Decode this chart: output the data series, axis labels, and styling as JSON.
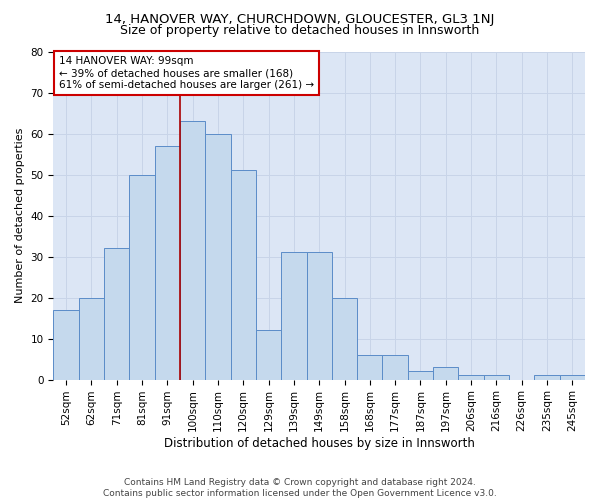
{
  "title1": "14, HANOVER WAY, CHURCHDOWN, GLOUCESTER, GL3 1NJ",
  "title2": "Size of property relative to detached houses in Innsworth",
  "xlabel": "Distribution of detached houses by size in Innsworth",
  "ylabel": "Number of detached properties",
  "categories": [
    "52sqm",
    "62sqm",
    "71sqm",
    "81sqm",
    "91sqm",
    "100sqm",
    "110sqm",
    "120sqm",
    "129sqm",
    "139sqm",
    "149sqm",
    "158sqm",
    "168sqm",
    "177sqm",
    "187sqm",
    "197sqm",
    "206sqm",
    "216sqm",
    "226sqm",
    "235sqm",
    "245sqm"
  ],
  "values": [
    17,
    20,
    32,
    50,
    57,
    63,
    60,
    51,
    12,
    31,
    31,
    20,
    6,
    6,
    2,
    3,
    1,
    1,
    0,
    1,
    1
  ],
  "bar_color": "#c5d9ed",
  "bar_edge_color": "#5b8cc8",
  "vline_color": "#aa0000",
  "annotation_text": "14 HANOVER WAY: 99sqm\n← 39% of detached houses are smaller (168)\n61% of semi-detached houses are larger (261) →",
  "annotation_box_color": "#ffffff",
  "annotation_box_edge": "#cc0000",
  "ylim": [
    0,
    80
  ],
  "yticks": [
    0,
    10,
    20,
    30,
    40,
    50,
    60,
    70,
    80
  ],
  "grid_color": "#c8d4e8",
  "background_color": "#dce6f5",
  "footer_text": "Contains HM Land Registry data © Crown copyright and database right 2024.\nContains public sector information licensed under the Open Government Licence v3.0.",
  "title1_fontsize": 9.5,
  "title2_fontsize": 9,
  "xlabel_fontsize": 8.5,
  "ylabel_fontsize": 8,
  "tick_fontsize": 7.5,
  "annotation_fontsize": 7.5,
  "footer_fontsize": 6.5
}
